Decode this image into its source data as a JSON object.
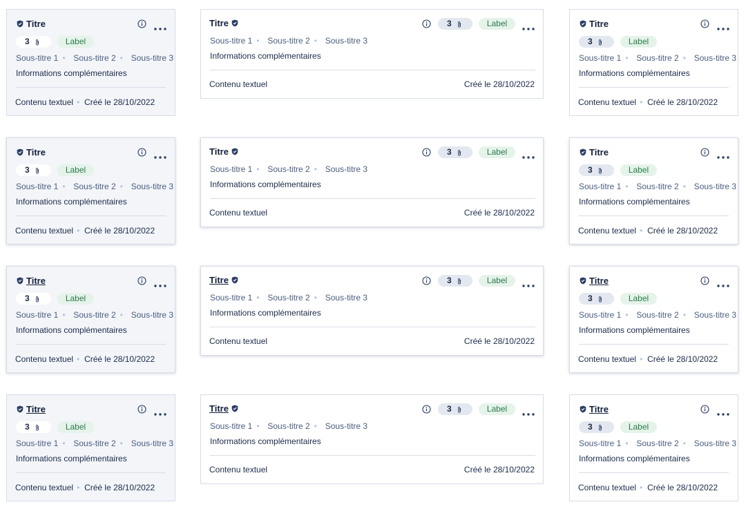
{
  "cards": [
    {
      "title": "Titre",
      "count": 3,
      "label": "Label",
      "subtitles": [
        "Sous-titre 1",
        "Sous-titre 2",
        "Sous-titre 3"
      ],
      "info": "Informations complémentaires",
      "content": "Contenu textuel",
      "created": "Créé le 28/10/2022"
    },
    {
      "title": "Titre",
      "count": 3,
      "label": "Label",
      "subtitles": [
        "Sous-titre 1",
        "Sous-titre 2",
        "Sous-titre 3"
      ],
      "info": "Informations complémentaires",
      "content": "Contenu textuel",
      "created": "Créé le 28/10/2022"
    },
    {
      "title": "Titre",
      "count": 3,
      "label": "Label",
      "subtitles": [
        "Sous-titre 1",
        "Sous-titre 2",
        "Sous-titre 3"
      ],
      "info": "Informations complémentaires",
      "content": "Contenu textuel",
      "created": "Créé le 28/10/2022"
    },
    {
      "title": "Titre",
      "count": 3,
      "label": "Label",
      "subtitles": [
        "Sous-titre 1",
        "Sous-titre 2",
        "Sous-titre 3"
      ],
      "info": "Informations complémentaires",
      "content": "Contenu textuel",
      "created": "Créé le 28/10/2022"
    },
    {
      "title": "Titre",
      "count": 3,
      "label": "Label",
      "subtitles": [
        "Sous-titre 1",
        "Sous-titre 2",
        "Sous-titre 3"
      ],
      "info": "Informations complémentaires",
      "content": "Contenu textuel",
      "created": "Créé le 28/10/2022"
    },
    {
      "title": "Titre",
      "count": 3,
      "label": "Label",
      "subtitles": [
        "Sous-titre 1",
        "Sous-titre 2",
        "Sous-titre 3"
      ],
      "info": "Informations complémentaires",
      "content": "Contenu textuel",
      "created": "Créé le 28/10/2022"
    },
    {
      "title": "Titre",
      "count": 3,
      "label": "Label",
      "subtitles": [
        "Sous-titre 1",
        "Sous-titre 2",
        "Sous-titre 3"
      ],
      "info": "Informations complémentaires",
      "content": "Contenu textuel",
      "created": "Créé le 28/10/2022"
    },
    {
      "title": "Titre",
      "count": 3,
      "label": "Label",
      "subtitles": [
        "Sous-titre 1",
        "Sous-titre 2",
        "Sous-titre 3"
      ],
      "info": "Informations complémentaires",
      "content": "Contenu textuel",
      "created": "Créé le 28/10/2022"
    },
    {
      "title": "Titre",
      "count": 3,
      "label": "Label",
      "subtitles": [
        "Sous-titre 1",
        "Sous-titre 2",
        "Sous-titre 3"
      ],
      "info": "Informations complémentaires",
      "content": "Contenu textuel",
      "created": "Créé le 28/10/2022"
    },
    {
      "title": "Titre",
      "count": 3,
      "label": "Label",
      "subtitles": [
        "Sous-titre 1",
        "Sous-titre 2",
        "Sous-titre 3"
      ],
      "info": "Informations complémentaires",
      "content": "Contenu textuel",
      "created": "Créé le 28/10/2022"
    },
    {
      "title": "Titre",
      "count": 3,
      "label": "Label",
      "subtitles": [
        "Sous-titre 1",
        "Sous-titre 2",
        "Sous-titre 3"
      ],
      "info": "Informations complémentaires",
      "content": "Contenu textuel",
      "created": "Créé le 28/10/2022"
    },
    {
      "title": "Titre",
      "count": 3,
      "label": "Label",
      "subtitles": [
        "Sous-titre 1",
        "Sous-titre 2",
        "Sous-titre 3"
      ],
      "info": "Informations complémentaires",
      "content": "Contenu textuel",
      "created": "Créé le 28/10/2022"
    }
  ]
}
